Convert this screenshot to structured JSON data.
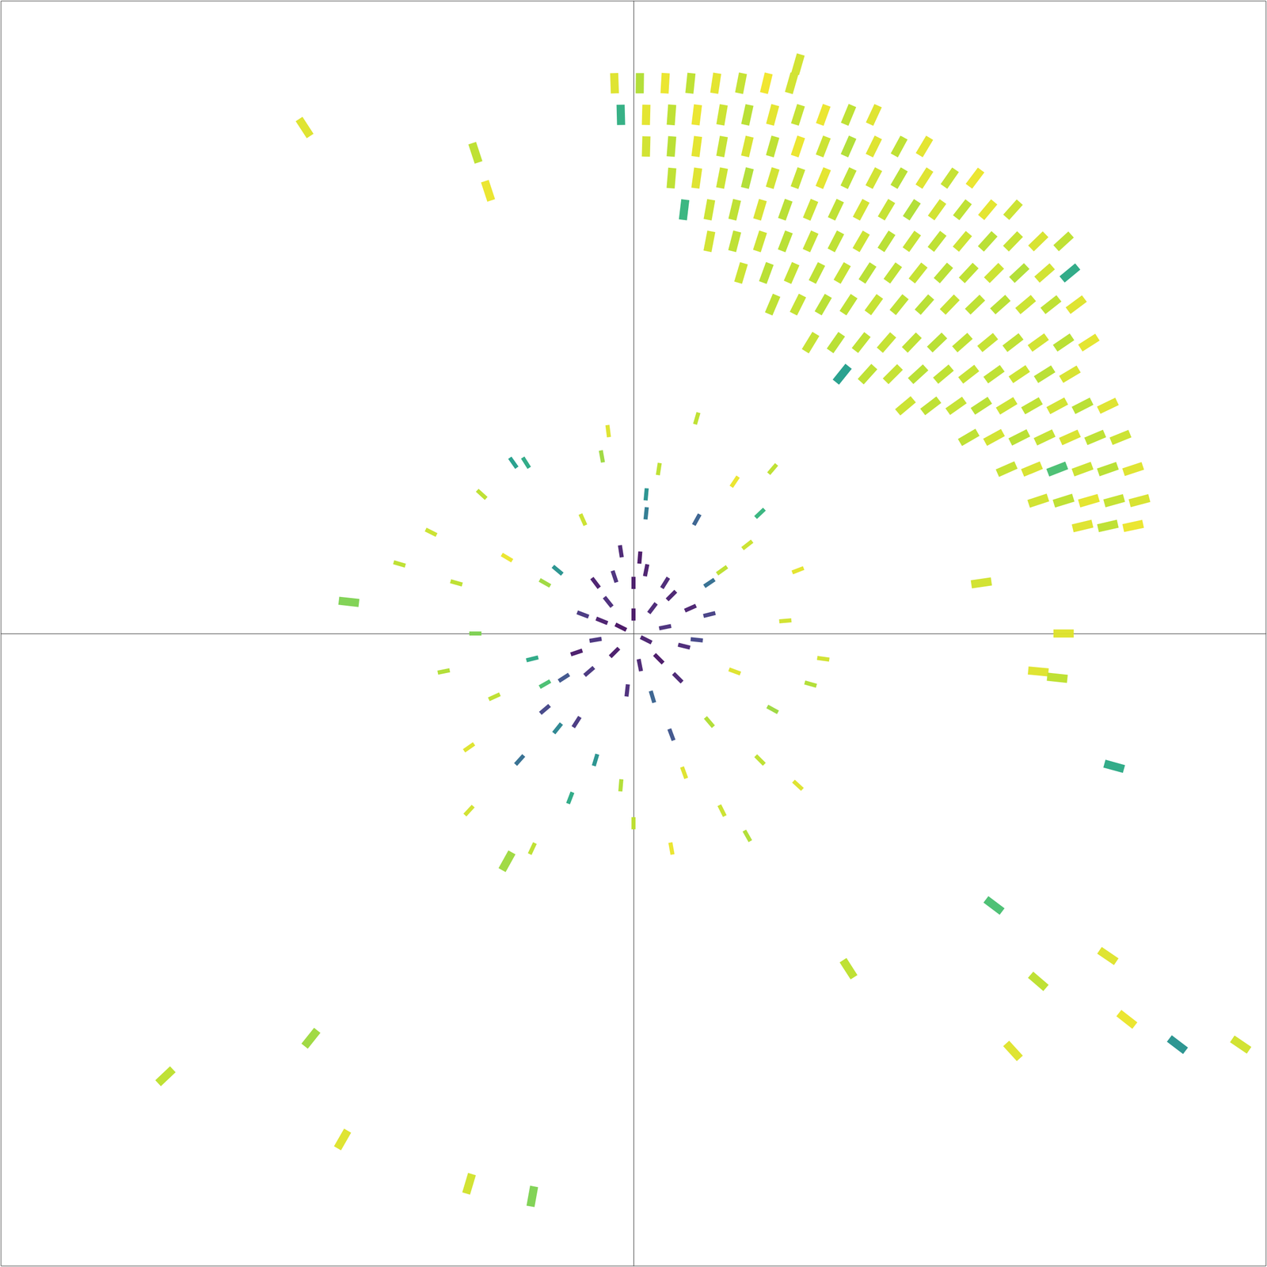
{
  "chart_data": {
    "type": "scatter",
    "xlim": [
      -100,
      100
    ],
    "ylim": [
      -100,
      100
    ],
    "tick_labels": false,
    "grid": false,
    "color_range": [
      0,
      1
    ],
    "points": [
      [
        -3,
        87,
        0.95
      ],
      [
        1,
        87,
        0.88
      ],
      [
        5,
        87,
        0.97
      ],
      [
        9,
        87,
        0.9
      ],
      [
        13,
        87,
        0.96
      ],
      [
        17,
        87,
        0.91
      ],
      [
        21,
        87,
        0.98
      ],
      [
        25,
        87,
        0.93
      ],
      [
        -2,
        82,
        0.62
      ],
      [
        2,
        82,
        0.96
      ],
      [
        6,
        82,
        0.9
      ],
      [
        10,
        82,
        0.97
      ],
      [
        14,
        82,
        0.92
      ],
      [
        18,
        82,
        0.89
      ],
      [
        22,
        82,
        0.96
      ],
      [
        26,
        82,
        0.91
      ],
      [
        30,
        82,
        0.97
      ],
      [
        34,
        82,
        0.9
      ],
      [
        38,
        82,
        0.95
      ],
      [
        2,
        77,
        0.93
      ],
      [
        6,
        77,
        0.89
      ],
      [
        10,
        77,
        0.96
      ],
      [
        14,
        77,
        0.91
      ],
      [
        18,
        77,
        0.94
      ],
      [
        22,
        77,
        0.9
      ],
      [
        26,
        77,
        0.97
      ],
      [
        30,
        77,
        0.92
      ],
      [
        34,
        77,
        0.88
      ],
      [
        38,
        77,
        0.95
      ],
      [
        42,
        77,
        0.9
      ],
      [
        46,
        77,
        0.96
      ],
      [
        6,
        72,
        0.9
      ],
      [
        10,
        72,
        0.95
      ],
      [
        14,
        72,
        0.92
      ],
      [
        18,
        72,
        0.88
      ],
      [
        22,
        72,
        0.93
      ],
      [
        26,
        72,
        0.91
      ],
      [
        30,
        72,
        0.96
      ],
      [
        34,
        72,
        0.9
      ],
      [
        38,
        72,
        0.93
      ],
      [
        42,
        72,
        0.89
      ],
      [
        46,
        72,
        0.95
      ],
      [
        50,
        72,
        0.91
      ],
      [
        54,
        72,
        0.97
      ],
      [
        8,
        67,
        0.65
      ],
      [
        12,
        67,
        0.92
      ],
      [
        16,
        67,
        0.9
      ],
      [
        20,
        67,
        0.94
      ],
      [
        24,
        67,
        0.89
      ],
      [
        28,
        67,
        0.92
      ],
      [
        32,
        67,
        0.9
      ],
      [
        36,
        67,
        0.93
      ],
      [
        40,
        67,
        0.91
      ],
      [
        44,
        67,
        0.88
      ],
      [
        48,
        67,
        0.93
      ],
      [
        52,
        67,
        0.9
      ],
      [
        56,
        67,
        0.96
      ],
      [
        60,
        67,
        0.92
      ],
      [
        12,
        62,
        0.93
      ],
      [
        16,
        62,
        0.9
      ],
      [
        20,
        62,
        0.92
      ],
      [
        24,
        62,
        0.89
      ],
      [
        28,
        62,
        0.91
      ],
      [
        32,
        62,
        0.9
      ],
      [
        36,
        62,
        0.92
      ],
      [
        40,
        62,
        0.89
      ],
      [
        44,
        62,
        0.91
      ],
      [
        48,
        62,
        0.9
      ],
      [
        52,
        62,
        0.92
      ],
      [
        56,
        62,
        0.89
      ],
      [
        60,
        62,
        0.91
      ],
      [
        64,
        62,
        0.94
      ],
      [
        68,
        62,
        0.9
      ],
      [
        17,
        57,
        0.92
      ],
      [
        21,
        57,
        0.89
      ],
      [
        25,
        57,
        0.91
      ],
      [
        29,
        57,
        0.9
      ],
      [
        33,
        57,
        0.91
      ],
      [
        37,
        57,
        0.89
      ],
      [
        41,
        57,
        0.9
      ],
      [
        45,
        57,
        0.91
      ],
      [
        49,
        57,
        0.89
      ],
      [
        53,
        57,
        0.9
      ],
      [
        57,
        57,
        0.92
      ],
      [
        61,
        57,
        0.88
      ],
      [
        65,
        57,
        0.93
      ],
      [
        69,
        57,
        0.6
      ],
      [
        22,
        52,
        0.9
      ],
      [
        26,
        52,
        0.91
      ],
      [
        30,
        52,
        0.89
      ],
      [
        34,
        52,
        0.9
      ],
      [
        38,
        52,
        0.91
      ],
      [
        42,
        52,
        0.9
      ],
      [
        46,
        52,
        0.89
      ],
      [
        50,
        52,
        0.91
      ],
      [
        54,
        52,
        0.9
      ],
      [
        58,
        52,
        0.89
      ],
      [
        62,
        52,
        0.92
      ],
      [
        66,
        52,
        0.9
      ],
      [
        70,
        52,
        0.95
      ],
      [
        28,
        46,
        0.91
      ],
      [
        32,
        46,
        0.89
      ],
      [
        36,
        46,
        0.9
      ],
      [
        40,
        46,
        0.91
      ],
      [
        44,
        46,
        0.9
      ],
      [
        48,
        46,
        0.89
      ],
      [
        52,
        46,
        0.9
      ],
      [
        56,
        46,
        0.91
      ],
      [
        60,
        46,
        0.9
      ],
      [
        64,
        46,
        0.93
      ],
      [
        68,
        46,
        0.89
      ],
      [
        72,
        46,
        0.96
      ],
      [
        33,
        41,
        0.55
      ],
      [
        37,
        41,
        0.9
      ],
      [
        41,
        41,
        0.91
      ],
      [
        45,
        41,
        0.89
      ],
      [
        49,
        41,
        0.9
      ],
      [
        53,
        41,
        0.91
      ],
      [
        57,
        41,
        0.9
      ],
      [
        61,
        41,
        0.92
      ],
      [
        65,
        41,
        0.89
      ],
      [
        69,
        41,
        0.94
      ],
      [
        43,
        36,
        0.92
      ],
      [
        47,
        36,
        0.9
      ],
      [
        51,
        36,
        0.91
      ],
      [
        55,
        36,
        0.89
      ],
      [
        59,
        36,
        0.92
      ],
      [
        63,
        36,
        0.9
      ],
      [
        67,
        36,
        0.93
      ],
      [
        71,
        36,
        0.89
      ],
      [
        75,
        36,
        0.95
      ],
      [
        53,
        31,
        0.9
      ],
      [
        57,
        31,
        0.93
      ],
      [
        61,
        31,
        0.89
      ],
      [
        65,
        31,
        0.91
      ],
      [
        69,
        31,
        0.94
      ],
      [
        73,
        31,
        0.9
      ],
      [
        77,
        31,
        0.92
      ],
      [
        59,
        26,
        0.91
      ],
      [
        63,
        26,
        0.94
      ],
      [
        67,
        26,
        0.7
      ],
      [
        71,
        26,
        0.92
      ],
      [
        75,
        26,
        0.89
      ],
      [
        79,
        26,
        0.95
      ],
      [
        64,
        21,
        0.93
      ],
      [
        68,
        21,
        0.9
      ],
      [
        72,
        21,
        0.96
      ],
      [
        76,
        21,
        0.91
      ],
      [
        80,
        21,
        0.94
      ],
      [
        71,
        17,
        0.95
      ],
      [
        75,
        17,
        0.9
      ],
      [
        79,
        17,
        0.97
      ],
      [
        0,
        3,
        0.05
      ],
      [
        2,
        -1,
        0.08
      ],
      [
        -2,
        1,
        0.04
      ],
      [
        3,
        4,
        0.1
      ],
      [
        -3,
        -3,
        0.06
      ],
      [
        5,
        1,
        0.12
      ],
      [
        -5,
        2,
        0.07
      ],
      [
        1,
        -5,
        0.09
      ],
      [
        4,
        -4,
        0.05
      ],
      [
        -4,
        5,
        0.11
      ],
      [
        6,
        6,
        0.08
      ],
      [
        -6,
        -1,
        0.13
      ],
      [
        0,
        8,
        0.06
      ],
      [
        8,
        -2,
        0.1
      ],
      [
        -8,
        3,
        0.15
      ],
      [
        2,
        10,
        0.07
      ],
      [
        -3,
        9,
        0.12
      ],
      [
        7,
        -7,
        0.09
      ],
      [
        -7,
        -6,
        0.14
      ],
      [
        9,
        4,
        0.08
      ],
      [
        -1,
        -9,
        0.11
      ],
      [
        3,
        -10,
        0.3
      ],
      [
        -9,
        -3,
        0.06
      ],
      [
        10,
        -1,
        0.2
      ],
      [
        5,
        8,
        0.1
      ],
      [
        -6,
        8,
        0.07
      ],
      [
        1,
        12,
        0.05
      ],
      [
        -2,
        13,
        0.09
      ],
      [
        12,
        3,
        0.18
      ],
      [
        -11,
        -7,
        0.25
      ],
      [
        14,
        10,
        0.9
      ],
      [
        -14,
        8,
        0.85
      ],
      [
        16,
        -6,
        0.95
      ],
      [
        -16,
        -4,
        0.6
      ],
      [
        12,
        -14,
        0.88
      ],
      [
        -12,
        -15,
        0.45
      ],
      [
        -6,
        -20,
        0.5
      ],
      [
        -19,
        27,
        0.55
      ],
      [
        -17,
        27,
        0.6
      ],
      [
        2,
        22,
        0.5
      ],
      [
        2,
        19,
        0.4
      ],
      [
        20,
        19,
        0.65
      ],
      [
        18,
        14,
        0.92
      ],
      [
        -20,
        12,
        0.97
      ],
      [
        -22,
        -10,
        0.9
      ],
      [
        22,
        -12,
        0.85
      ],
      [
        8,
        -22,
        0.95
      ],
      [
        -2,
        -24,
        0.88
      ],
      [
        -10,
        -26,
        0.6
      ],
      [
        24,
        2,
        0.93
      ],
      [
        -25,
        0,
        0.8
      ],
      [
        20,
        -20,
        0.9
      ],
      [
        -18,
        -20,
        0.35
      ],
      [
        -14,
        -8,
        0.7
      ],
      [
        10,
        18,
        0.3
      ],
      [
        -8,
        18,
        0.92
      ],
      [
        4,
        26,
        0.9
      ],
      [
        -5,
        28,
        0.85
      ],
      [
        26,
        10,
        0.96
      ],
      [
        -28,
        8,
        0.9
      ],
      [
        28,
        -8,
        0.88
      ],
      [
        -26,
        -18,
        0.95
      ],
      [
        14,
        -28,
        0.92
      ],
      [
        -14,
        -12,
        0.2
      ],
      [
        16,
        24,
        0.97
      ],
      [
        -24,
        22,
        0.9
      ],
      [
        6,
        -16,
        0.25
      ],
      [
        -9,
        -14,
        0.15
      ],
      [
        12,
        8,
        0.35
      ],
      [
        -12,
        10,
        0.5
      ],
      [
        30,
        -4,
        0.93
      ],
      [
        -30,
        -6,
        0.88
      ],
      [
        0,
        -30,
        0.9
      ],
      [
        -4,
        32,
        0.95
      ],
      [
        22,
        26,
        0.9
      ],
      [
        -32,
        16,
        0.92
      ],
      [
        6,
        -34,
        0.97
      ],
      [
        -16,
        -34,
        0.9
      ],
      [
        -26,
        -28,
        0.93
      ],
      [
        26,
        -24,
        0.95
      ],
      [
        18,
        -32,
        0.88
      ],
      [
        -20,
        -36,
        0.85
      ],
      [
        10,
        34,
        0.9
      ],
      [
        -74,
        -70,
        0.9
      ],
      [
        -46,
        -80,
        0.95
      ],
      [
        -51,
        -64,
        0.85
      ],
      [
        -26,
        -87,
        0.93
      ],
      [
        -16,
        -89,
        0.8
      ],
      [
        57,
        -43,
        0.7
      ],
      [
        64,
        -55,
        0.9
      ],
      [
        75,
        -51,
        0.95
      ],
      [
        86,
        -65,
        0.5
      ],
      [
        96,
        -65,
        0.93
      ],
      [
        78,
        -61,
        0.97
      ],
      [
        60,
        -66,
        0.95
      ],
      [
        34,
        -53,
        0.9
      ],
      [
        64,
        -6,
        0.95
      ],
      [
        67,
        -7,
        0.9
      ],
      [
        76,
        -21,
        0.6
      ],
      [
        68,
        0,
        0.95
      ],
      [
        55,
        8,
        0.93
      ],
      [
        -52,
        80,
        0.95
      ],
      [
        -25,
        76,
        0.9
      ],
      [
        -23,
        70,
        0.97
      ],
      [
        26,
        90,
        0.93
      ],
      [
        -37,
        11,
        0.9
      ],
      [
        -45,
        5,
        0.8
      ]
    ]
  }
}
